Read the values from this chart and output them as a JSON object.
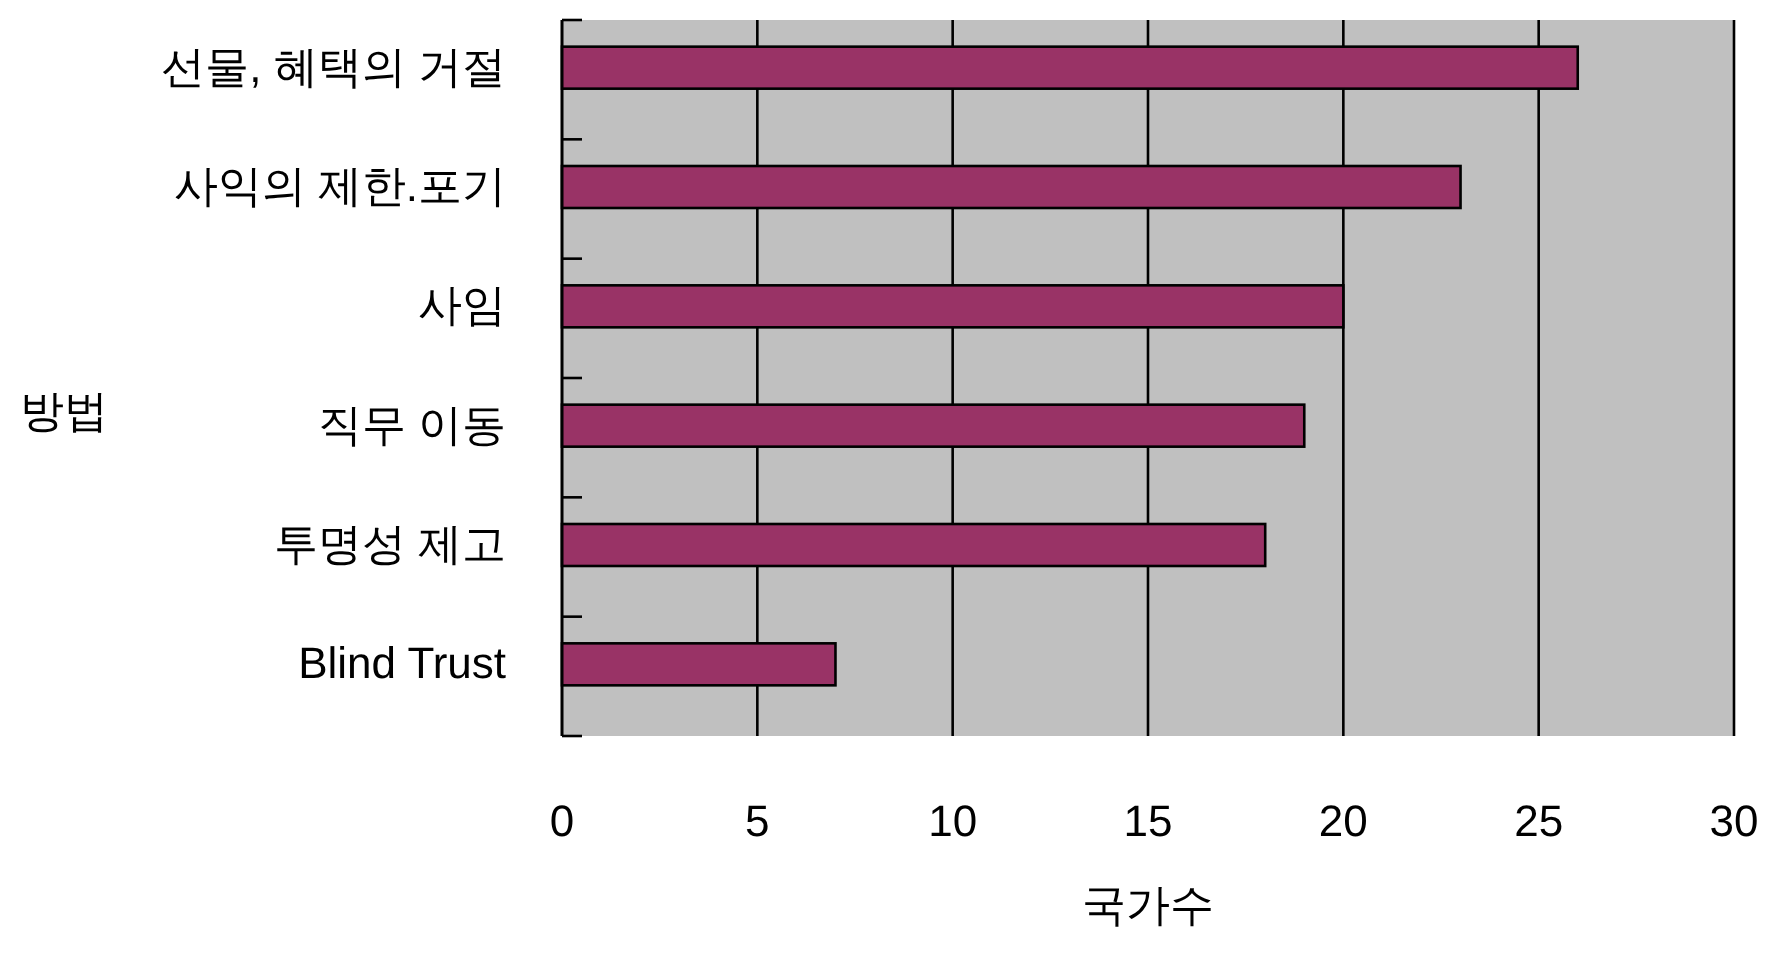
{
  "chart_data": {
    "type": "bar",
    "orientation": "horizontal",
    "ylabel": "방법",
    "xlabel": "국가수",
    "categories": [
      "선물, 혜택의 거절",
      "사익의 제한.포기",
      "사임",
      "직무 이동",
      "투명성 제고",
      "Blind Trust"
    ],
    "values": [
      26,
      23,
      20,
      19,
      18,
      7
    ],
    "color": "#993366",
    "xlim": [
      0,
      30
    ],
    "xticks": [
      0,
      5,
      10,
      15,
      20,
      25,
      30
    ],
    "grid": "x"
  }
}
